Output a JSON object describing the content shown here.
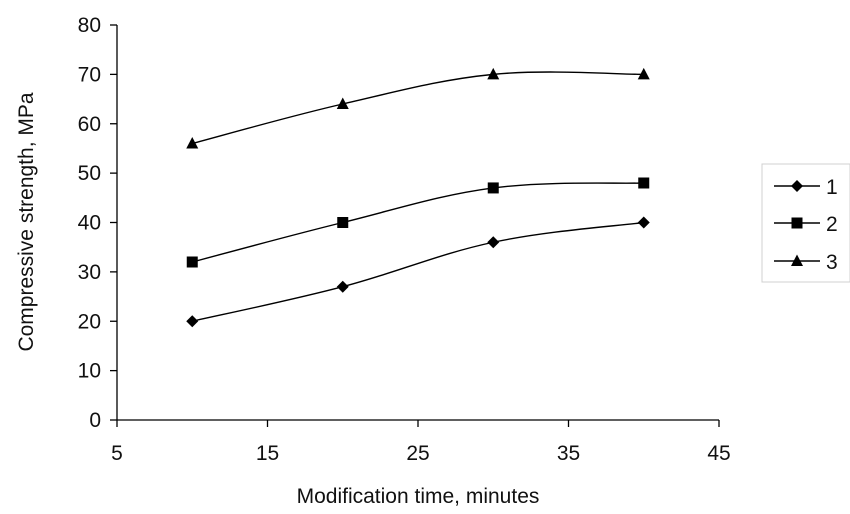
{
  "chart_data": {
    "type": "line",
    "title": "",
    "xlabel": "Modification time, minutes",
    "ylabel": "Compressive strength, MPa",
    "xlim": [
      5,
      45
    ],
    "ylim": [
      0,
      80
    ],
    "xticks": [
      5,
      15,
      25,
      35,
      45
    ],
    "yticks": [
      0,
      10,
      20,
      30,
      40,
      50,
      60,
      70,
      80
    ],
    "grid": false,
    "legend_position": "right",
    "x": [
      10,
      20,
      30,
      40
    ],
    "series": [
      {
        "name": "1",
        "marker": "diamond",
        "values": [
          20,
          27,
          36,
          40
        ]
      },
      {
        "name": "2",
        "marker": "square",
        "values": [
          32,
          40,
          47,
          48
        ]
      },
      {
        "name": "3",
        "marker": "triangle",
        "values": [
          56,
          64,
          70,
          70
        ]
      }
    ],
    "colors": {
      "line": "#000000",
      "axis": "#000000"
    }
  }
}
